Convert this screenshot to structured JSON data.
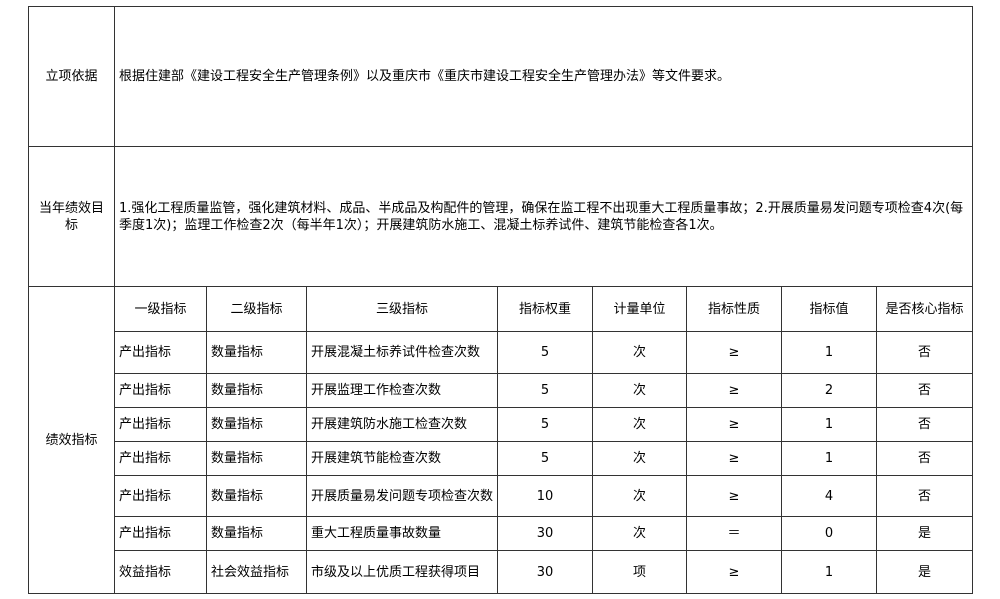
{
  "basis": {
    "label": "立项依据",
    "text": "根据住建部《建设工程安全生产管理条例》以及重庆市《重庆市建设工程安全生产管理办法》等文件要求。"
  },
  "goal": {
    "label": "当年绩效目标",
    "text": "1.强化工程质量监管，强化建筑材料、成品、半成品及构配件的管理，确保在监工程不出现重大工程质量事故；2.开展质量易发问题专项检查4次(每季度1次)；监理工作检查2次（每半年1次）；开展建筑防水施工、混凝土标养试件、建筑节能检查各1次。"
  },
  "indicators": {
    "label": "绩效指标",
    "headers": [
      "一级指标",
      "二级指标",
      "三级指标",
      "指标权重",
      "计量单位",
      "指标性质",
      "指标值",
      "是否核心指标"
    ],
    "rows": [
      [
        "产出指标",
        "数量指标",
        "开展混凝土标养试件检查次数",
        "5",
        "次",
        "≥",
        "1",
        "否"
      ],
      [
        "产出指标",
        "数量指标",
        "开展监理工作检查次数",
        "5",
        "次",
        "≥",
        "2",
        "否"
      ],
      [
        "产出指标",
        "数量指标",
        "开展建筑防水施工检查次数",
        "5",
        "次",
        "≥",
        "1",
        "否"
      ],
      [
        "产出指标",
        "数量指标",
        "开展建筑节能检查次数",
        "5",
        "次",
        "≥",
        "1",
        "否"
      ],
      [
        "产出指标",
        "数量指标",
        "开展质量易发问题专项检查次数",
        "10",
        "次",
        "≥",
        "4",
        "否"
      ],
      [
        "产出指标",
        "数量指标",
        "重大工程质量事故数量",
        "30",
        "次",
        "＝",
        "0",
        "是"
      ],
      [
        "效益指标",
        "社会效益指标",
        "市级及以上优质工程获得项目",
        "30",
        "项",
        "≥",
        "1",
        "是"
      ]
    ]
  }
}
